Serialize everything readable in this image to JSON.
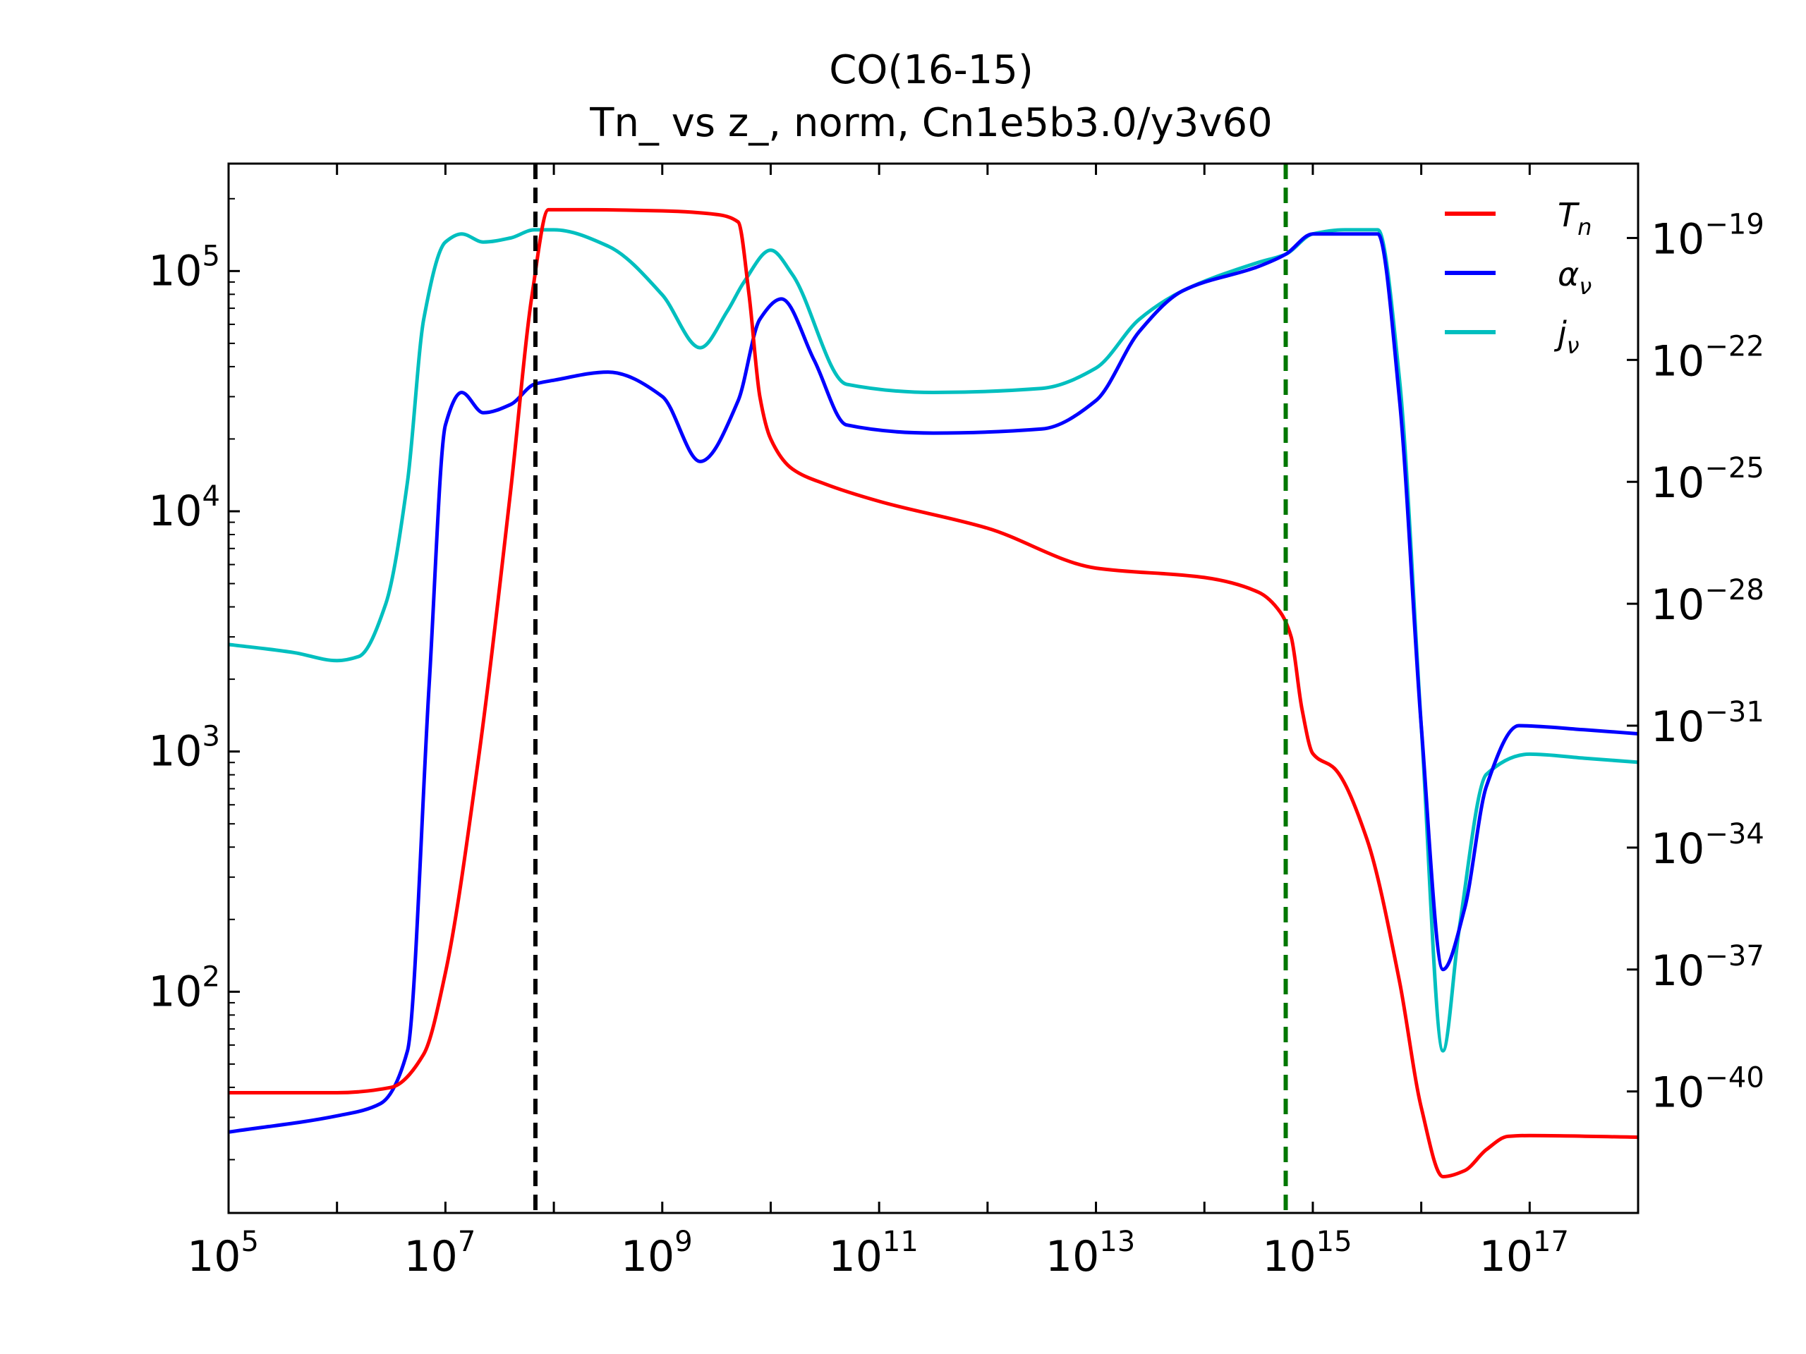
{
  "chart_data": {
    "type": "line",
    "title": "CO(16-15)",
    "subtitle": "Tn_ vs z_, norm, Cn1e5b3.0/y3v60",
    "xscale": "log",
    "xlim": [
      100000.0,
      1e+18
    ],
    "x_ticks": [
      {
        "base": "10",
        "exp": "5",
        "value": 100000.0
      },
      {
        "base": "10",
        "exp": "7",
        "value": 10000000.0
      },
      {
        "base": "10",
        "exp": "9",
        "value": 1000000000.0
      },
      {
        "base": "10",
        "exp": "11",
        "value": 100000000000.0
      },
      {
        "base": "10",
        "exp": "13",
        "value": 10000000000000.0
      },
      {
        "base": "10",
        "exp": "15",
        "value": 1000000000000000.0
      },
      {
        "base": "10",
        "exp": "17",
        "value": 1e+17
      }
    ],
    "left_axis": {
      "scale": "log",
      "ylim": [
        12,
        280000
      ],
      "ticks": [
        {
          "base": "10",
          "exp": "2",
          "value": 100
        },
        {
          "base": "10",
          "exp": "3",
          "value": 1000
        },
        {
          "base": "10",
          "exp": "4",
          "value": 10000
        },
        {
          "base": "10",
          "exp": "5",
          "value": 100000
        }
      ]
    },
    "right_axis": {
      "scale": "log",
      "ylim_exp": [
        -42.99,
        -17.17
      ],
      "ticks": [
        {
          "base": "10",
          "exp": "−19",
          "value_exp": -19
        },
        {
          "base": "10",
          "exp": "−22",
          "value_exp": -22
        },
        {
          "base": "10",
          "exp": "−25",
          "value_exp": -25
        },
        {
          "base": "10",
          "exp": "−28",
          "value_exp": -28
        },
        {
          "base": "10",
          "exp": "−31",
          "value_exp": -31
        },
        {
          "base": "10",
          "exp": "−34",
          "value_exp": -34
        },
        {
          "base": "10",
          "exp": "−37",
          "value_exp": -37
        },
        {
          "base": "10",
          "exp": "−40",
          "value_exp": -40
        }
      ]
    },
    "vlines": [
      {
        "x_exp": 7.83,
        "color": "#000000",
        "style": "dashed"
      },
      {
        "x_exp": 14.75,
        "color": "#007700",
        "style": "dashed"
      }
    ],
    "legend_position": "top-right",
    "series": [
      {
        "name": "T_n",
        "legend_main": "T",
        "legend_sub": "n",
        "color": "#ff0000",
        "axis": "left",
        "x_exp": [
          5.0,
          6.0,
          6.5,
          6.8,
          7.0,
          7.3,
          7.6,
          7.8,
          7.95,
          8.3,
          9.0,
          9.5,
          9.7,
          9.8,
          9.9,
          10.0,
          10.2,
          10.5,
          11.0,
          12.0,
          13.0,
          14.0,
          14.5,
          14.7,
          14.8,
          14.9,
          15.0,
          15.2,
          15.5,
          15.8,
          16.0,
          16.2,
          16.4,
          16.6,
          16.8,
          17.0,
          18.0
        ],
        "y": [
          38,
          38,
          40,
          55,
          120,
          900,
          12000,
          80000,
          180000,
          180000,
          178000,
          172000,
          160000,
          80000,
          30000,
          20000,
          15000,
          13000,
          11000,
          8500,
          5800,
          5300,
          4600,
          3800,
          3000,
          1500,
          980,
          850,
          430,
          110,
          33,
          17,
          18,
          22,
          25,
          25.2,
          24.8
        ]
      },
      {
        "name": "alpha_nu",
        "legend_main": "α",
        "legend_sub": "ν",
        "color": "#0000ff",
        "axis": "right",
        "x_exp": [
          5.0,
          6.0,
          6.4,
          6.65,
          6.85,
          7.0,
          7.15,
          7.35,
          7.6,
          7.82,
          8.0,
          8.5,
          9.0,
          9.35,
          9.7,
          9.9,
          10.1,
          10.4,
          10.7,
          11.5,
          12.5,
          13.0,
          13.4,
          13.8,
          14.5,
          14.75,
          15.0,
          15.3,
          15.6,
          15.8,
          16.0,
          16.2,
          16.4,
          16.6,
          16.9,
          17.5,
          18.0
        ],
        "y_exp": [
          -41.0,
          -40.6,
          -40.3,
          -39.0,
          -30.0,
          -23.6,
          -22.8,
          -23.3,
          -23.1,
          -22.6,
          -22.5,
          -22.3,
          -22.9,
          -24.5,
          -23.0,
          -21.0,
          -20.5,
          -22.0,
          -23.6,
          -23.8,
          -23.7,
          -23.0,
          -21.3,
          -20.3,
          -19.7,
          -19.4,
          -18.9,
          -18.9,
          -18.9,
          -23.0,
          -31.0,
          -37.0,
          -35.5,
          -32.5,
          -31.0,
          -31.1,
          -31.2
        ]
      },
      {
        "name": "j_nu",
        "legend_main": "j",
        "legend_sub": "ν",
        "color": "#00bfbf",
        "axis": "right",
        "x_exp": [
          5.0,
          5.6,
          6.0,
          6.2,
          6.45,
          6.65,
          6.8,
          7.0,
          7.15,
          7.35,
          7.6,
          7.82,
          8.0,
          8.5,
          9.0,
          9.35,
          9.6,
          9.75,
          10.0,
          10.2,
          10.7,
          11.5,
          12.5,
          13.0,
          13.4,
          13.8,
          14.5,
          14.75,
          15.0,
          15.3,
          15.6,
          15.8,
          16.0,
          16.2,
          16.35,
          16.6,
          17.0,
          17.5,
          18.0
        ],
        "y_exp": [
          -29.0,
          -29.2,
          -29.4,
          -29.3,
          -28.0,
          -25.0,
          -21.0,
          -19.1,
          -18.9,
          -19.1,
          -19.0,
          -18.8,
          -18.8,
          -19.2,
          -20.4,
          -21.7,
          -20.8,
          -20.1,
          -19.3,
          -19.9,
          -22.6,
          -22.8,
          -22.7,
          -22.2,
          -21.0,
          -20.3,
          -19.6,
          -19.4,
          -18.9,
          -18.8,
          -18.8,
          -22.5,
          -31.0,
          -39.0,
          -36.0,
          -32.2,
          -31.7,
          -31.8,
          -31.9
        ]
      }
    ]
  }
}
